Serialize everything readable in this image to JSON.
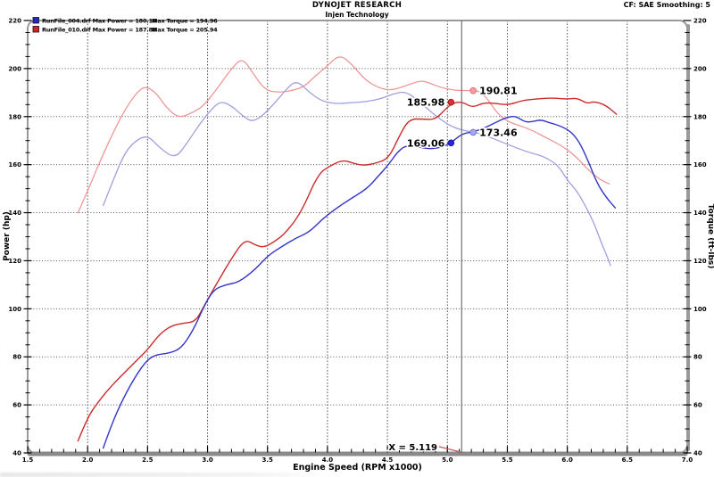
{
  "header": {
    "title": "DYNOJET RESEARCH",
    "subtitle": "Injen Technology",
    "correction": "CF: SAE  Smoothing: 5"
  },
  "legend": {
    "rows": [
      {
        "file": "RunFile_004.drf",
        "swatch_color": "#2626cc",
        "label_power": "RunFile_004.drf Max Power = 180.16",
        "label_torque": "Max Torque = 194.96",
        "max_power": 180.16,
        "max_torque": 194.96
      },
      {
        "file": "RunFile_010.drf",
        "swatch_color": "#d62222",
        "label_power": "RunFile_010.drf Max Power = 187.88",
        "label_torque": "Max Torque = 205.94",
        "max_power": 187.88,
        "max_torque": 205.94
      }
    ]
  },
  "cursor": {
    "x": 5.119,
    "label": "X = 5.119"
  },
  "markers": [
    {
      "series": "run010_power",
      "label": "185.98",
      "value": 185.98,
      "rpm": 5.119,
      "dot": [
        5.03,
        185.98
      ],
      "side": "left",
      "fill": "#e03030",
      "ring": "#a01818"
    },
    {
      "series": "run010_torque",
      "label": "190.81",
      "value": 190.81,
      "rpm": 5.119,
      "dot": [
        5.215,
        190.81
      ],
      "side": "right",
      "fill": "#f4a0a0",
      "ring": "#d87070"
    },
    {
      "series": "run004_power",
      "label": "169.06",
      "value": 169.06,
      "rpm": 5.119,
      "dot": [
        5.03,
        169.06
      ],
      "side": "left",
      "fill": "#2828d8",
      "ring": "#1818a0"
    },
    {
      "series": "run004_torque",
      "label": "173.46",
      "value": 173.46,
      "rpm": 5.119,
      "dot": [
        5.215,
        173.46
      ],
      "side": "right",
      "fill": "#a8a8ec",
      "ring": "#7878cc"
    }
  ],
  "chart_data": {
    "type": "line",
    "xlabel": "Engine Speed (RPM x1000)",
    "ylabel_left": "Power (hp)",
    "ylabel_right": "Torque (ft-lbs)",
    "xlim": [
      1.5,
      7.0
    ],
    "ylim": [
      40,
      220
    ],
    "grid": "dotted",
    "x_tick_labels": [
      "1.5",
      "2.0",
      "2.5",
      "3.0",
      "3.5",
      "4.0",
      "4.5",
      "5.0",
      "5.5",
      "6.0",
      "6.5",
      "7.0"
    ],
    "y_tick_labels": [
      "40",
      "60",
      "80",
      "100",
      "120",
      "140",
      "160",
      "180",
      "200",
      "220"
    ],
    "series": [
      {
        "name": "run010_torque",
        "run": "RunFile_010.drf",
        "kind": "torque",
        "color": "#ee9898",
        "width": 1.3,
        "points": [
          [
            1.92,
            140
          ],
          [
            2.0,
            149
          ],
          [
            2.1,
            161
          ],
          [
            2.2,
            172
          ],
          [
            2.3,
            182
          ],
          [
            2.4,
            189.5
          ],
          [
            2.48,
            192.8
          ],
          [
            2.57,
            190
          ],
          [
            2.66,
            183.5
          ],
          [
            2.76,
            179.4
          ],
          [
            2.87,
            181.5
          ],
          [
            2.97,
            184.5
          ],
          [
            3.1,
            193
          ],
          [
            3.2,
            200
          ],
          [
            3.29,
            204.6
          ],
          [
            3.38,
            198
          ],
          [
            3.48,
            191
          ],
          [
            3.6,
            190
          ],
          [
            3.72,
            191
          ],
          [
            3.81,
            192.6
          ],
          [
            3.9,
            197
          ],
          [
            3.99,
            200.7
          ],
          [
            4.1,
            205.9
          ],
          [
            4.2,
            202
          ],
          [
            4.3,
            196
          ],
          [
            4.4,
            192.5
          ],
          [
            4.52,
            190.7
          ],
          [
            4.65,
            192.8
          ],
          [
            4.78,
            195.1
          ],
          [
            4.85,
            194
          ],
          [
            4.95,
            192
          ],
          [
            5.05,
            191
          ],
          [
            5.15,
            190.8
          ],
          [
            5.25,
            191
          ],
          [
            5.32,
            188.5
          ],
          [
            5.42,
            181
          ],
          [
            5.52,
            177.5
          ],
          [
            5.62,
            176
          ],
          [
            5.72,
            174
          ],
          [
            5.83,
            171
          ],
          [
            5.95,
            168
          ],
          [
            6.07,
            163.5
          ],
          [
            6.18,
            157.5
          ],
          [
            6.28,
            153.5
          ],
          [
            6.35,
            152
          ]
        ]
      },
      {
        "name": "run004_torque",
        "run": "RunFile_004.drf",
        "kind": "torque",
        "color": "#a0a0e0",
        "width": 1.3,
        "points": [
          [
            2.13,
            143
          ],
          [
            2.2,
            152
          ],
          [
            2.31,
            165
          ],
          [
            2.4,
            170
          ],
          [
            2.5,
            172.3
          ],
          [
            2.6,
            167
          ],
          [
            2.73,
            162.4
          ],
          [
            2.83,
            169
          ],
          [
            2.93,
            176.6
          ],
          [
            3.03,
            183
          ],
          [
            3.11,
            186.5
          ],
          [
            3.2,
            184.5
          ],
          [
            3.3,
            180
          ],
          [
            3.37,
            177.8
          ],
          [
            3.45,
            180
          ],
          [
            3.55,
            185
          ],
          [
            3.65,
            191
          ],
          [
            3.74,
            195.3
          ],
          [
            3.85,
            190
          ],
          [
            3.95,
            186.5
          ],
          [
            4.07,
            185.3
          ],
          [
            4.2,
            185.8
          ],
          [
            4.33,
            186.2
          ],
          [
            4.45,
            187.5
          ],
          [
            4.55,
            189.5
          ],
          [
            4.65,
            190.5
          ],
          [
            4.75,
            187
          ],
          [
            4.85,
            182.5
          ],
          [
            4.95,
            178.5
          ],
          [
            5.05,
            175.5
          ],
          [
            5.15,
            174
          ],
          [
            5.25,
            173.3
          ],
          [
            5.35,
            171.5
          ],
          [
            5.5,
            168.5
          ],
          [
            5.65,
            165.5
          ],
          [
            5.8,
            163.5
          ],
          [
            5.92,
            160
          ],
          [
            6.0,
            153.5
          ],
          [
            6.08,
            149
          ],
          [
            6.15,
            143
          ],
          [
            6.22,
            136
          ],
          [
            6.28,
            128
          ],
          [
            6.33,
            122
          ],
          [
            6.36,
            118
          ]
        ]
      },
      {
        "name": "run010_power",
        "run": "RunFile_010.drf",
        "kind": "power",
        "color": "#cc2b2b",
        "width": 1.4,
        "points": [
          [
            1.92,
            45
          ],
          [
            2.0,
            55
          ],
          [
            2.1,
            62
          ],
          [
            2.2,
            68
          ],
          [
            2.3,
            73
          ],
          [
            2.4,
            78
          ],
          [
            2.5,
            83
          ],
          [
            2.6,
            89.5
          ],
          [
            2.7,
            93
          ],
          [
            2.8,
            94
          ],
          [
            2.9,
            94.7
          ],
          [
            2.97,
            101
          ],
          [
            3.07,
            110
          ],
          [
            3.2,
            121
          ],
          [
            3.31,
            129
          ],
          [
            3.4,
            126.5
          ],
          [
            3.47,
            125.5
          ],
          [
            3.56,
            128
          ],
          [
            3.65,
            131.5
          ],
          [
            3.78,
            140
          ],
          [
            3.92,
            156
          ],
          [
            4.02,
            159.5
          ],
          [
            4.13,
            162
          ],
          [
            4.22,
            160.5
          ],
          [
            4.3,
            159.6
          ],
          [
            4.4,
            160.5
          ],
          [
            4.51,
            162.5
          ],
          [
            4.6,
            172
          ],
          [
            4.68,
            179
          ],
          [
            4.8,
            179
          ],
          [
            4.9,
            178.7
          ],
          [
            5.0,
            184
          ],
          [
            5.06,
            185.9
          ],
          [
            5.13,
            186
          ],
          [
            5.21,
            183.7
          ],
          [
            5.3,
            185.8
          ],
          [
            5.4,
            185.5
          ],
          [
            5.51,
            184.8
          ],
          [
            5.62,
            186.7
          ],
          [
            5.75,
            187.4
          ],
          [
            5.88,
            187.8
          ],
          [
            6.0,
            187.2
          ],
          [
            6.08,
            187.8
          ],
          [
            6.17,
            185.3
          ],
          [
            6.22,
            186.4
          ],
          [
            6.32,
            184.8
          ],
          [
            6.41,
            181
          ]
        ]
      },
      {
        "name": "run004_power",
        "run": "RunFile_004.drf",
        "kind": "power",
        "color": "#3535c8",
        "width": 1.4,
        "points": [
          [
            2.13,
            42
          ],
          [
            2.2,
            52
          ],
          [
            2.3,
            63
          ],
          [
            2.4,
            72
          ],
          [
            2.5,
            79
          ],
          [
            2.58,
            81
          ],
          [
            2.68,
            81.5
          ],
          [
            2.78,
            83.5
          ],
          [
            2.88,
            91
          ],
          [
            2.97,
            101
          ],
          [
            3.05,
            108
          ],
          [
            3.15,
            110
          ],
          [
            3.26,
            111
          ],
          [
            3.4,
            116.5
          ],
          [
            3.5,
            122
          ],
          [
            3.62,
            126
          ],
          [
            3.74,
            129.5
          ],
          [
            3.85,
            132
          ],
          [
            3.95,
            137
          ],
          [
            4.05,
            141
          ],
          [
            4.2,
            146
          ],
          [
            4.33,
            150
          ],
          [
            4.42,
            155
          ],
          [
            4.51,
            160
          ],
          [
            4.58,
            165
          ],
          [
            4.65,
            168
          ],
          [
            4.75,
            167.5
          ],
          [
            4.85,
            166.5
          ],
          [
            4.95,
            167.2
          ],
          [
            5.03,
            169.1
          ],
          [
            5.12,
            172.8
          ],
          [
            5.2,
            173.5
          ],
          [
            5.3,
            175
          ],
          [
            5.4,
            177.5
          ],
          [
            5.5,
            179.8
          ],
          [
            5.57,
            180.2
          ],
          [
            5.65,
            177.6
          ],
          [
            5.72,
            178
          ],
          [
            5.78,
            178.7
          ],
          [
            5.85,
            177.5
          ],
          [
            5.95,
            176
          ],
          [
            6.03,
            173.7
          ],
          [
            6.1,
            169.5
          ],
          [
            6.17,
            162
          ],
          [
            6.25,
            152
          ],
          [
            6.33,
            146
          ],
          [
            6.4,
            142
          ]
        ]
      }
    ]
  }
}
